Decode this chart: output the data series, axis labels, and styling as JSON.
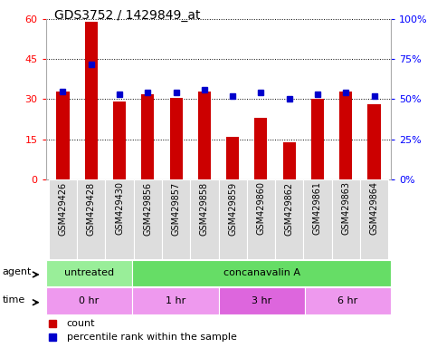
{
  "title": "GDS3752 / 1429849_at",
  "samples": [
    "GSM429426",
    "GSM429428",
    "GSM429430",
    "GSM429856",
    "GSM429857",
    "GSM429858",
    "GSM429859",
    "GSM429860",
    "GSM429862",
    "GSM429861",
    "GSM429863",
    "GSM429864"
  ],
  "counts": [
    33,
    59,
    29,
    32,
    30.5,
    33,
    16,
    23,
    14,
    30,
    33,
    28
  ],
  "percentile_ranks": [
    55,
    72,
    53,
    54,
    54,
    56,
    52,
    54,
    50,
    53,
    54,
    52
  ],
  "left_ylim": [
    0,
    60
  ],
  "right_ylim": [
    0,
    100
  ],
  "left_yticks": [
    0,
    15,
    30,
    45,
    60
  ],
  "right_yticks": [
    0,
    25,
    50,
    75,
    100
  ],
  "right_yticklabels": [
    "0%",
    "25%",
    "50%",
    "75%",
    "100%"
  ],
  "bar_color": "#cc0000",
  "dot_color": "#0000cc",
  "agent_row": [
    {
      "label": "untreated",
      "start": 0,
      "end": 3,
      "color": "#99ee99"
    },
    {
      "label": "concanavalin A",
      "start": 3,
      "end": 12,
      "color": "#66dd66"
    }
  ],
  "time_row": [
    {
      "label": "0 hr",
      "start": 0,
      "end": 3,
      "color": "#ee99ee"
    },
    {
      "label": "1 hr",
      "start": 3,
      "end": 6,
      "color": "#ee99ee"
    },
    {
      "label": "3 hr",
      "start": 6,
      "end": 9,
      "color": "#dd66dd"
    },
    {
      "label": "6 hr",
      "start": 9,
      "end": 12,
      "color": "#ee99ee"
    }
  ],
  "xlabel_fontsize": 7,
  "tick_fontsize": 8,
  "title_fontsize": 10,
  "background_color": "#ffffff"
}
